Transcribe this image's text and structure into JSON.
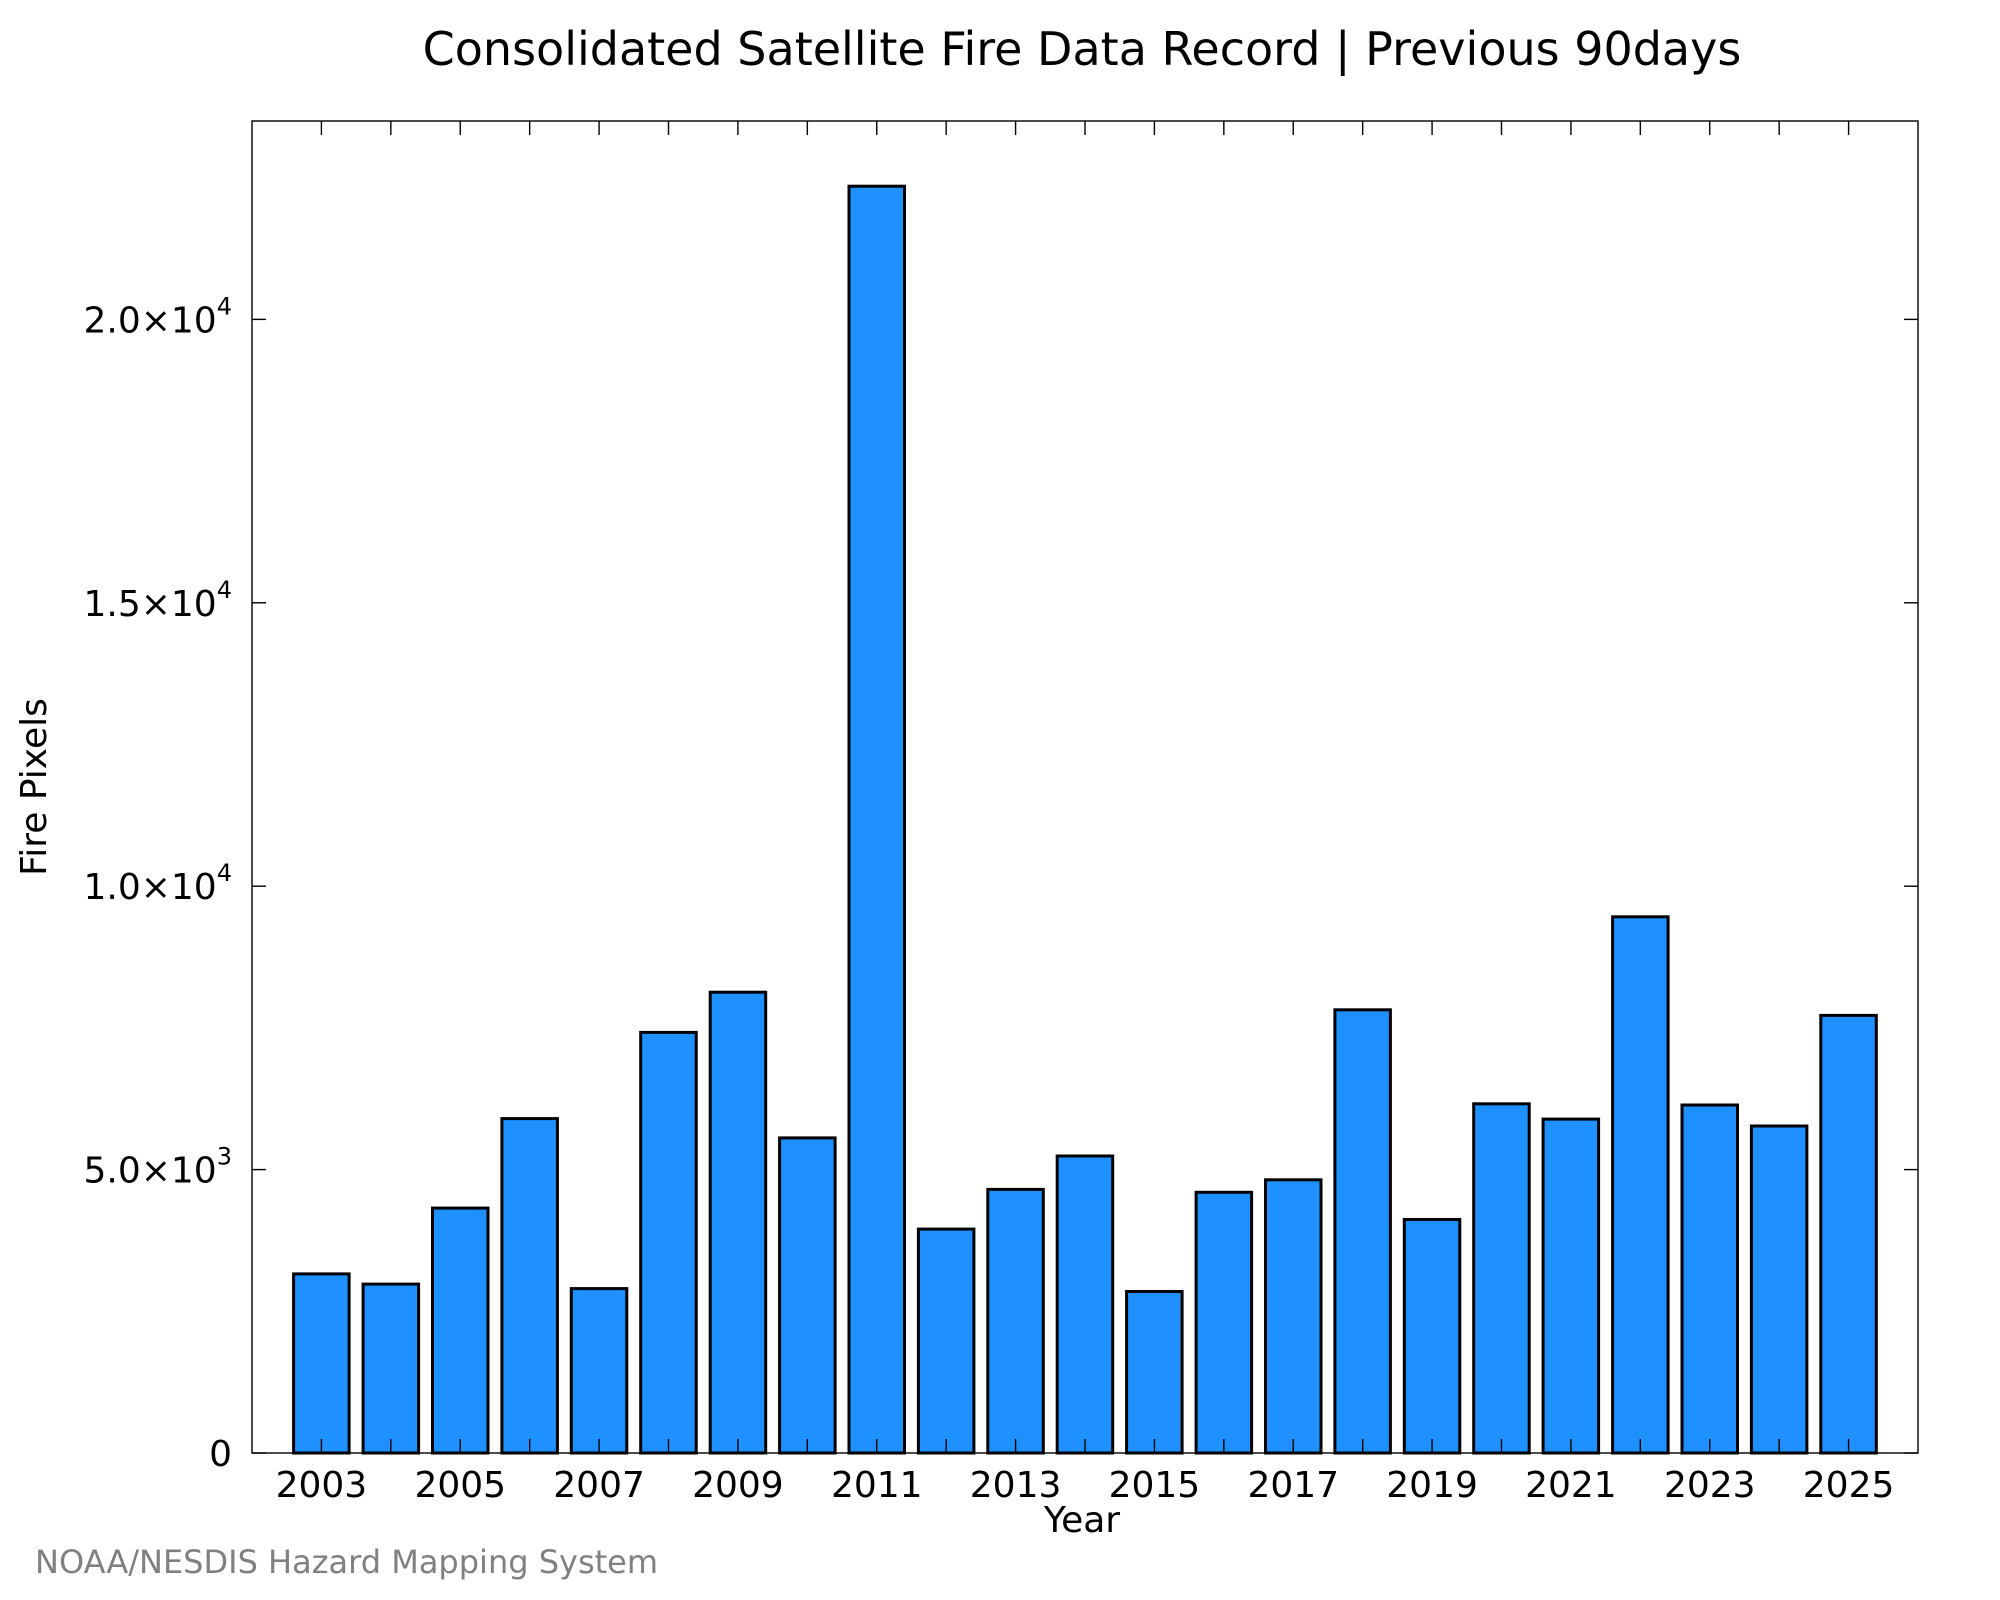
{
  "chart_data": {
    "type": "bar",
    "title": "Consolidated Satellite Fire Data Record | Previous 90days",
    "xlabel": "Year",
    "ylabel": "Fire Pixels",
    "x": [
      2003,
      2004,
      2005,
      2006,
      2007,
      2008,
      2009,
      2010,
      2011,
      2012,
      2013,
      2014,
      2015,
      2016,
      2017,
      2018,
      2019,
      2020,
      2021,
      2022,
      2023,
      2024,
      2025
    ],
    "values": [
      3160,
      2980,
      4320,
      5900,
      2900,
      7420,
      8130,
      5560,
      22350,
      3950,
      4650,
      5240,
      2850,
      4600,
      4820,
      7820,
      4120,
      6160,
      5890,
      9460,
      6140,
      5770,
      7720
    ],
    "xlim": [
      2002,
      2026
    ],
    "ylim": [
      0,
      23500
    ],
    "x_ticks": [
      {
        "value": 2003,
        "label": "2003"
      },
      {
        "value": 2005,
        "label": "2005"
      },
      {
        "value": 2007,
        "label": "2007"
      },
      {
        "value": 2009,
        "label": "2009"
      },
      {
        "value": 2011,
        "label": "2011"
      },
      {
        "value": 2013,
        "label": "2013"
      },
      {
        "value": 2015,
        "label": "2015"
      },
      {
        "value": 2017,
        "label": "2017"
      },
      {
        "value": 2019,
        "label": "2019"
      },
      {
        "value": 2021,
        "label": "2021"
      },
      {
        "value": 2023,
        "label": "2023"
      },
      {
        "value": 2025,
        "label": "2025"
      }
    ],
    "y_ticks": [
      {
        "value": 0,
        "mantissa": "0",
        "exponent": ""
      },
      {
        "value": 5000,
        "mantissa": "5.0×10",
        "exponent": "3"
      },
      {
        "value": 10000,
        "mantissa": "1.0×10",
        "exponent": "4"
      },
      {
        "value": 15000,
        "mantissa": "1.5×10",
        "exponent": "4"
      },
      {
        "value": 20000,
        "mantissa": "2.0×10",
        "exponent": "4"
      }
    ],
    "bar_color": "#1e90ff",
    "grid": false,
    "legend": "none"
  },
  "credit": "NOAA/NESDIS Hazard Mapping System"
}
